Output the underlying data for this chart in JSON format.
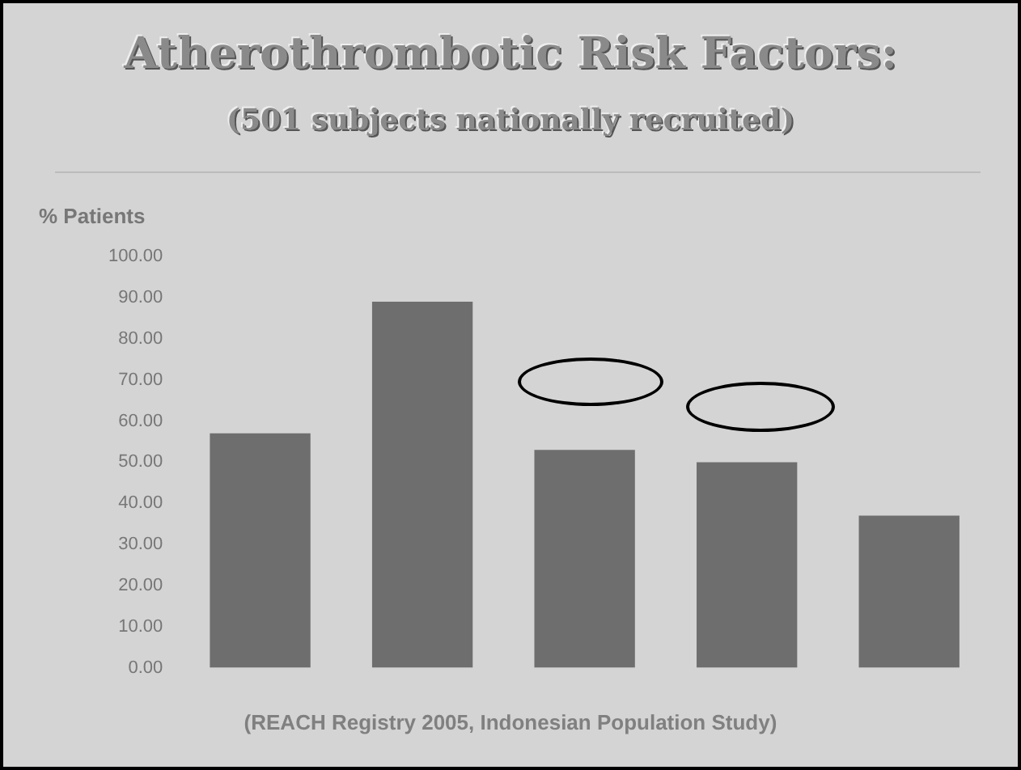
{
  "chart_data": {
    "type": "bar",
    "title": "Atherothrombotic Risk Factors:",
    "subtitle": "(501 subjects nationally recruited)",
    "ylabel": "% Patients",
    "categories": [
      null,
      null,
      null,
      null,
      null
    ],
    "values": [
      57,
      89,
      53,
      50,
      37
    ],
    "color": "#6e6e6e",
    "ylim": [
      0,
      100
    ],
    "yticks": [
      {
        "value": 0,
        "label": "0.00"
      },
      {
        "value": 10,
        "label": "10.00"
      },
      {
        "value": 20,
        "label": "20.00"
      },
      {
        "value": 30,
        "label": "30.00"
      },
      {
        "value": 40,
        "label": "40.00"
      },
      {
        "value": 50,
        "label": "50.00"
      },
      {
        "value": 60,
        "label": "60.00"
      },
      {
        "value": 70,
        "label": "70.00"
      },
      {
        "value": 80,
        "label": "80.00"
      },
      {
        "value": 90,
        "label": "90.00"
      },
      {
        "value": 100,
        "label": "100.00"
      }
    ],
    "grid": false,
    "legend": false,
    "annotations": [
      "(REACH Registry 2005, Indonesian Population Study)"
    ]
  }
}
